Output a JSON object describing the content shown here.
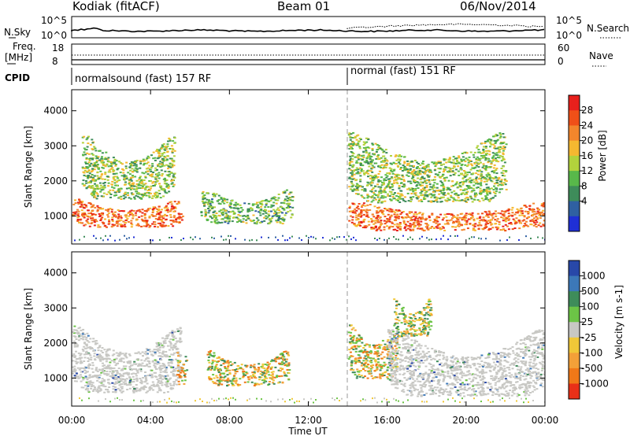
{
  "header": {
    "station": "Kodiak (fitACF)",
    "beam": "Beam 01",
    "date": "06/Nov/2014"
  },
  "chart_data": [
    {
      "type": "line",
      "panel": "N.Sky / N.Search",
      "left_label": "N.Sky",
      "right_label": "N.Search",
      "left_ticks": [
        "10^5",
        "10^0"
      ],
      "right_ticks": [
        "10^5",
        "10^0"
      ]
    },
    {
      "type": "line",
      "panel": "Freq / Nave",
      "left_label": [
        "Freq.",
        "[MHz]"
      ],
      "right_label": "Nave",
      "left_ticks": [
        "18",
        "8"
      ],
      "right_ticks": [
        "60",
        "0"
      ]
    },
    {
      "type": "table",
      "panel": "CPID",
      "label": "CPID",
      "segments": [
        {
          "start_hour": 0,
          "text": "normalsound (fast) 157 RF"
        },
        {
          "start_hour": 14,
          "text": "normal (fast) 151 RF"
        }
      ]
    },
    {
      "type": "heatmap",
      "panel": "Power",
      "ylabel": "Slant Range [km]",
      "yticks": [
        1000,
        2000,
        3000,
        4000
      ],
      "ylim": [
        200,
        4600
      ],
      "colorbar": {
        "label": "Power [dB]",
        "ticks": [
          "28",
          "24",
          "20",
          "16",
          "12",
          "8",
          "4"
        ],
        "colors": [
          "#e8201c",
          "#f05018",
          "#f3862c",
          "#f5b830",
          "#b2d23c",
          "#58b84a",
          "#3e8c5a",
          "#2f60a2",
          "#1f2fd6"
        ]
      },
      "echo_regions": [
        {
          "from_hour": 0.0,
          "to_hour": 5.6,
          "range_km": [
            700,
            1500
          ],
          "level_db": 26
        },
        {
          "from_hour": 0.5,
          "to_hour": 5.2,
          "range_km": [
            1500,
            3300
          ],
          "level_db": 14
        },
        {
          "from_hour": 6.5,
          "to_hour": 11.2,
          "range_km": [
            800,
            1800
          ],
          "level_db": 12
        },
        {
          "from_hour": 14.0,
          "to_hour": 24.0,
          "range_km": [
            600,
            1400
          ],
          "level_db": 26
        },
        {
          "from_hour": 14.0,
          "to_hour": 22.0,
          "range_km": [
            1400,
            3400
          ],
          "level_db": 14
        }
      ]
    },
    {
      "type": "heatmap",
      "panel": "Velocity",
      "ylabel": "Slant Range [km]",
      "xlabel": "Time UT",
      "xticks": [
        "00:00",
        "04:00",
        "08:00",
        "12:00",
        "16:00",
        "20:00",
        "00:00"
      ],
      "xlim_hours": [
        0,
        24
      ],
      "yticks": [
        1000,
        2000,
        3000,
        4000
      ],
      "ylim": [
        200,
        4600
      ],
      "colorbar": {
        "label": "Velocity [m s-1]",
        "ticks": [
          "1000",
          "500",
          "100",
          "25",
          "-25",
          "-100",
          "-500",
          "-1000"
        ],
        "colors": [
          "#2848a8",
          "#3c78b8",
          "#3e8c5a",
          "#6cc446",
          "#c8c8c4",
          "#f0c838",
          "#f3a038",
          "#f07818",
          "#e83018"
        ]
      },
      "echo_regions": [
        {
          "from_hour": 0.0,
          "to_hour": 5.5,
          "range_km": [
            600,
            2500
          ],
          "velocity_class": "-25 to 25"
        },
        {
          "from_hour": 5.3,
          "to_hour": 5.8,
          "range_km": [
            800,
            1800
          ],
          "velocity_class": "-500"
        },
        {
          "from_hour": 6.8,
          "to_hour": 11.0,
          "range_km": [
            800,
            1800
          ],
          "velocity_class": "-500"
        },
        {
          "from_hour": 14.0,
          "to_hour": 16.5,
          "range_km": [
            1000,
            2600
          ],
          "velocity_class": "-500"
        },
        {
          "from_hour": 16.0,
          "to_hour": 24.0,
          "range_km": [
            500,
            2400
          ],
          "velocity_class": "-25 to 25"
        },
        {
          "from_hour": 16.3,
          "to_hour": 18.2,
          "range_km": [
            2200,
            3300
          ],
          "velocity_class": "-100"
        }
      ]
    }
  ]
}
